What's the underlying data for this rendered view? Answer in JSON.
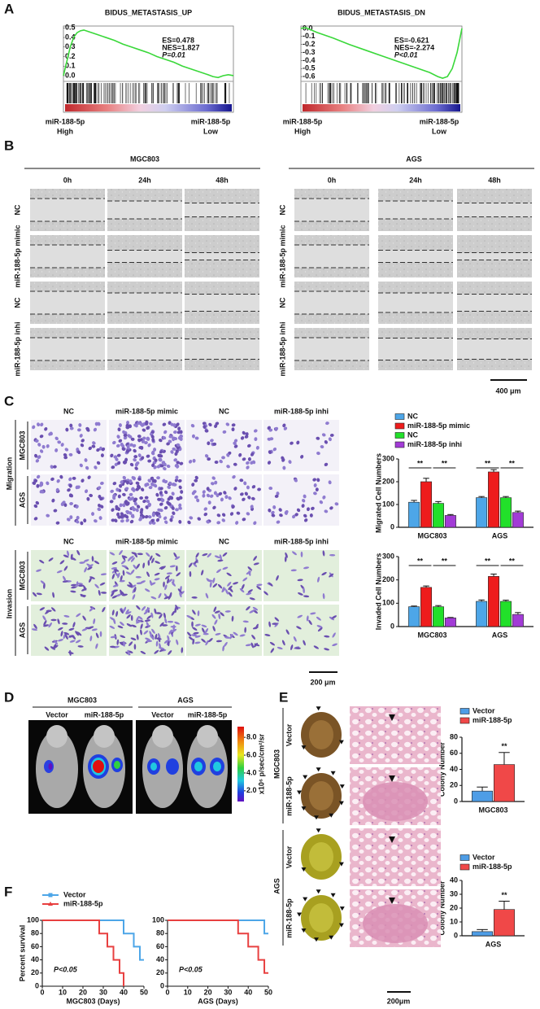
{
  "panel_labels": [
    "A",
    "B",
    "C",
    "D",
    "E",
    "F"
  ],
  "chart_data": [
    {
      "type": "line",
      "title": "BIDUS_METASTASIS_UP",
      "stats": [
        "ES=0.478",
        "NES=1.827",
        "P=0.01"
      ],
      "x": [
        0,
        2,
        4,
        6,
        8,
        10,
        12,
        15,
        20,
        25,
        30,
        35,
        40,
        45,
        50,
        55,
        60,
        65,
        70,
        75,
        80,
        85,
        88,
        91,
        94,
        97,
        100
      ],
      "values": [
        0,
        0.15,
        0.3,
        0.4,
        0.45,
        0.47,
        0.478,
        0.46,
        0.43,
        0.4,
        0.37,
        0.33,
        0.3,
        0.27,
        0.24,
        0.2,
        0.17,
        0.14,
        0.1,
        0.07,
        0.04,
        0.01,
        -0.01,
        -0.02,
        0,
        0.01,
        0
      ],
      "color": "#3ad83a",
      "xlim": [
        0,
        100
      ],
      "ylim": [
        -0.06,
        0.52
      ],
      "yticks": [
        {
          "value": 0,
          "label": "0.0"
        },
        0.1,
        0.2,
        0.3,
        0.4,
        0.5
      ],
      "left_label": [
        "miR-188-5p",
        "High"
      ],
      "right_label": [
        "miR-188-5p",
        "Low"
      ]
    },
    {
      "type": "line",
      "title": "BIDUS_METASTASIS_DN",
      "stats": [
        "ES=-0.621",
        "NES=-2.274",
        "P<0.01"
      ],
      "x": [
        0,
        3,
        10,
        20,
        30,
        40,
        50,
        60,
        70,
        80,
        85,
        88,
        91,
        94,
        97,
        100
      ],
      "values": [
        0,
        0.01,
        -0.05,
        -0.12,
        -0.2,
        -0.27,
        -0.34,
        -0.41,
        -0.48,
        -0.55,
        -0.6,
        -0.621,
        -0.6,
        -0.5,
        -0.3,
        0
      ],
      "color": "#3ad83a",
      "xlim": [
        0,
        100
      ],
      "ylim": [
        -0.66,
        0.03
      ],
      "yticks": [
        {
          "value": 0,
          "label": "0.0"
        },
        -0.1,
        -0.2,
        -0.3,
        -0.4,
        -0.5,
        -0.6
      ],
      "left_label": [
        "miR-188-5p",
        "High"
      ],
      "right_label": [
        "miR-188-5p",
        "Low"
      ]
    },
    {
      "type": "bar",
      "ylabel": "Migrated Cell Numbers",
      "categories": [
        "MGC803",
        "AGS"
      ],
      "series": [
        {
          "name": "NC",
          "color": "#4da6e8",
          "values": [
            110,
            130
          ],
          "errors": [
            8,
            5
          ]
        },
        {
          "name": "miR-188-5p mimic",
          "color": "#ee1c1c",
          "values": [
            200,
            243
          ],
          "errors": [
            15,
            10
          ]
        },
        {
          "name": "NC",
          "color": "#22e02a",
          "values": [
            105,
            130
          ],
          "errors": [
            8,
            5
          ]
        },
        {
          "name": "miR-188-5p inhi",
          "color": "#a23bd6",
          "values": [
            52,
            65
          ],
          "errors": [
            4,
            6
          ]
        }
      ],
      "ylim": [
        0,
        300
      ],
      "yticks": [
        0,
        100,
        200,
        300
      ],
      "annotations": [
        "**",
        "**",
        "**",
        "**"
      ]
    },
    {
      "type": "bar",
      "ylabel": "Invaded Cell Numbers",
      "categories": [
        "MGC803",
        "AGS"
      ],
      "series": [
        {
          "color": "#4da6e8",
          "values": [
            85,
            108
          ],
          "errors": [
            3,
            6
          ]
        },
        {
          "color": "#ee1c1c",
          "values": [
            168,
            215
          ],
          "errors": [
            6,
            10
          ]
        },
        {
          "color": "#22e02a",
          "values": [
            85,
            108
          ],
          "errors": [
            5,
            5
          ]
        },
        {
          "color": "#a23bd6",
          "values": [
            37,
            52
          ],
          "errors": [
            2,
            8
          ]
        }
      ],
      "ylim": [
        0,
        300
      ],
      "yticks": [
        0,
        100,
        200,
        300
      ],
      "annotations": [
        "**",
        "**",
        "**",
        "**"
      ]
    },
    {
      "type": "bar",
      "ylabel": "Colony Number",
      "categories": [
        "MGC803"
      ],
      "series": [
        {
          "name": "Vector",
          "color": "#4e9de6",
          "values": [
            13
          ],
          "errors": [
            5
          ]
        },
        {
          "name": "miR-188-5p",
          "color": "#f04848",
          "values": [
            46
          ],
          "errors": [
            15
          ]
        }
      ],
      "ylim": [
        0,
        80
      ],
      "yticks": [
        0,
        20,
        40,
        60,
        80
      ],
      "annotations": [
        "**"
      ]
    },
    {
      "type": "bar",
      "ylabel": "Colony Number",
      "categories": [
        "AGS"
      ],
      "series": [
        {
          "name": "Vector",
          "color": "#4e9de6",
          "values": [
            3
          ],
          "errors": [
            1.5
          ]
        },
        {
          "name": "miR-188-5p",
          "color": "#f04848",
          "values": [
            19
          ],
          "errors": [
            6
          ]
        }
      ],
      "ylim": [
        0,
        40
      ],
      "yticks": [
        0,
        10,
        20,
        30,
        40
      ],
      "annotations": [
        "**"
      ]
    },
    {
      "type": "step",
      "ylabel": "Percent survival",
      "xlabel": "MGC803 (Days)",
      "annotation": "P<0.05",
      "series": [
        {
          "name": "Vector",
          "color": "#4da6e8",
          "x": [
            0,
            40,
            40,
            45,
            45,
            48,
            48,
            50
          ],
          "values": [
            100,
            100,
            80,
            80,
            60,
            60,
            40,
            40
          ]
        },
        {
          "name": "miR-188-5p",
          "color": "#e84040",
          "x": [
            0,
            28,
            28,
            32,
            32,
            35,
            35,
            38,
            38,
            40,
            40
          ],
          "values": [
            100,
            100,
            80,
            80,
            60,
            60,
            40,
            40,
            20,
            20,
            0
          ]
        }
      ],
      "xlim": [
        0,
        50
      ],
      "xticks": [
        0,
        10,
        20,
        30,
        40,
        50
      ],
      "ylim": [
        0,
        100
      ],
      "yticks": [
        0,
        20,
        40,
        60,
        80,
        100
      ]
    },
    {
      "type": "step",
      "xlabel": "AGS (Days)",
      "annotation": "P<0.05",
      "series": [
        {
          "color": "#4da6e8",
          "x": [
            0,
            48,
            48,
            50
          ],
          "values": [
            100,
            100,
            80,
            80
          ]
        },
        {
          "color": "#e84040",
          "x": [
            0,
            35,
            35,
            40,
            40,
            45,
            45,
            48,
            48,
            50
          ],
          "values": [
            100,
            100,
            80,
            80,
            60,
            60,
            40,
            40,
            20,
            20
          ]
        }
      ],
      "xlim": [
        0,
        50
      ],
      "xticks": [
        0,
        10,
        20,
        30,
        40,
        50
      ],
      "ylim": [
        0,
        100
      ],
      "yticks": [
        0,
        20,
        40,
        60,
        80,
        100
      ]
    }
  ],
  "panel_b": {
    "cell_lines": [
      "MGC803",
      "AGS"
    ],
    "times": [
      "0h",
      "24h",
      "48h"
    ],
    "rows": [
      "NC",
      "miR-188-5p mimic",
      "NC",
      "miR-188-5p inhi"
    ],
    "scale": "400 μm"
  },
  "panel_c": {
    "columns": [
      "NC",
      "miR-188-5p mimic",
      "NC",
      "miR-188-5p inhi"
    ],
    "assays": [
      "Migration",
      "Invasion"
    ],
    "cell_lines": [
      "MGC803",
      "AGS"
    ],
    "scale": "200 μm"
  },
  "panel_d": {
    "cell_lines": [
      "MGC803",
      "AGS"
    ],
    "groups": [
      "Vector",
      "miR-188-5p"
    ],
    "colorbar": {
      "lim": [
        0.8,
        9.2
      ],
      "ticks": [
        {
          "value": 8,
          "label": "8.0"
        },
        {
          "value": 6,
          "label": "6.0"
        },
        {
          "value": 4,
          "label": "4.0"
        },
        {
          "value": 2,
          "label": "2.0"
        }
      ],
      "label": "x10⁶ p/sec/cm²/sr"
    }
  },
  "panel_e": {
    "cell_lines": [
      "MGC803",
      "AGS"
    ],
    "groups": [
      "Vector",
      "miR-188-5p"
    ],
    "scale": "200μm"
  }
}
